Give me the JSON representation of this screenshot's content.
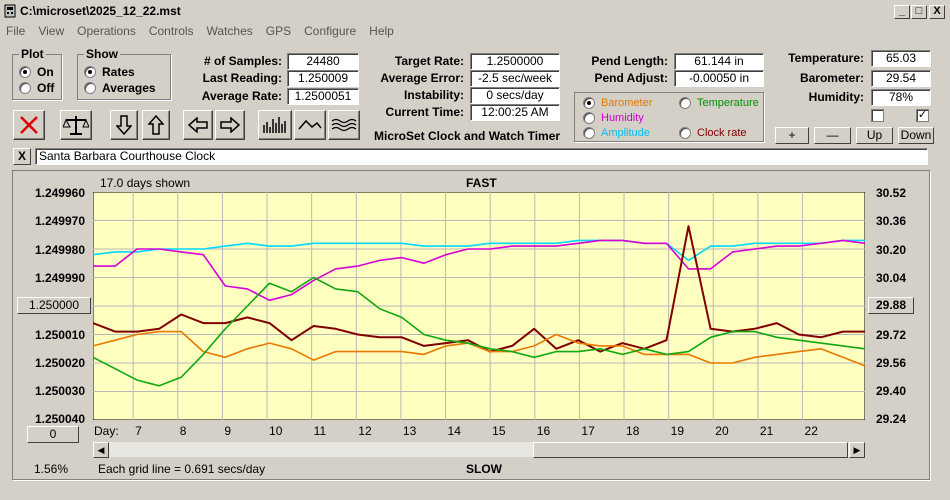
{
  "window": {
    "title": "C:\\microset\\2025_12_22.mst",
    "min": "_",
    "max": "□",
    "close": "X"
  },
  "menu": [
    "File",
    "View",
    "Operations",
    "Controls",
    "Watches",
    "GPS",
    "Configure",
    "Help"
  ],
  "plot": {
    "title": "Plot",
    "on": "On",
    "off": "Off",
    "selected": "On"
  },
  "show": {
    "title": "Show",
    "rates": "Rates",
    "averages": "Averages",
    "selected": "Rates"
  },
  "stats": {
    "samples_label": "# of Samples:",
    "samples": "24480",
    "last_label": "Last Reading:",
    "last": "1.250009",
    "avgrate_label": "Average Rate:",
    "avgrate": "1.2500051",
    "target_label": "Target Rate:",
    "target": "1.2500000",
    "avgerr_label": "Average Error:",
    "avgerr": "-2.5 sec/week",
    "instab_label": "Instability:",
    "instab": "0 secs/day",
    "time_label": "Current Time:",
    "time": "12:00:25 AM",
    "pendlen_label": "Pend Length:",
    "pendlen": "61.144 in",
    "pendadj_label": "Pend Adjust:",
    "pendadj": "-0.00050 in",
    "temp_label": "Temperature:",
    "temp": "65.03",
    "baro_label": "Barometer:",
    "baro": "29.54",
    "hum_label": "Humidity:",
    "hum": "78%"
  },
  "app_caption": "MicroSet Clock and Watch Timer",
  "sensor_select": {
    "barometer": "Barometer",
    "temperature": "Temperature",
    "humidity": "Humidity",
    "amplitude": "Amplitude",
    "clockrate": "Clock rate",
    "selected": "Barometer",
    "colors": {
      "barometer": "#e07800",
      "temperature": "#009000",
      "humidity": "#d000d0",
      "amplitude": "#00d0ff",
      "clockrate": "#800000"
    }
  },
  "adj_buttons": {
    "plus": "+",
    "minus": "—",
    "up": "Up",
    "down": "Down"
  },
  "toolbar_icons": [
    "close-x-icon",
    "balance-scale-icon",
    "arrow-down-icon",
    "arrow-up-icon",
    "arrow-left-icon",
    "arrow-right-icon",
    "histogram-icon",
    "wave-icon",
    "multi-wave-icon"
  ],
  "note_field": "Santa Barbara Courthouse Clock",
  "note_close": "X",
  "chart_header": {
    "days_shown": "17.0 days shown",
    "fast": "FAST",
    "slow": "SLOW",
    "grid_note": "Each grid line = 0.691 secs/day",
    "percent": "1.56%",
    "day_label": "Day:"
  },
  "left_button": "1.250000",
  "right_button": "29.88",
  "bottom_button": "0",
  "chart_data": {
    "type": "line",
    "title": "",
    "x_label": "Day",
    "x_ticks": [
      7,
      8,
      9,
      10,
      11,
      12,
      13,
      14,
      15,
      16,
      17,
      18,
      19,
      20,
      21,
      22
    ],
    "xlim": [
      6.1,
      23.4
    ],
    "y_left_ticks": [
      "1.249960",
      "1.249970",
      "1.249980",
      "1.249990",
      "1.250000",
      "1.250010",
      "1.250020",
      "1.250030",
      "1.250040"
    ],
    "y_left_range": [
      1.24996,
      1.25004
    ],
    "y_left_inverted": true,
    "y_right_ticks": [
      "30.52",
      "30.36",
      "30.20",
      "30.04",
      "29.88",
      "29.72",
      "29.56",
      "29.40",
      "29.24"
    ],
    "y_right_range": [
      29.24,
      30.52
    ],
    "grid": true,
    "background": "#ffffc0",
    "series": [
      {
        "color": "#00d8ff",
        "values": [
          1.249982,
          1.249981,
          1.249981,
          1.24998,
          1.24998,
          1.24998,
          1.249979,
          1.249978,
          1.249979,
          1.249979,
          1.249978,
          1.249978,
          1.249978,
          1.249978,
          1.249978,
          1.249979,
          1.249979,
          1.249979,
          1.249978,
          1.249978,
          1.249978,
          1.249978,
          1.249977,
          1.249977,
          1.249977,
          1.249978,
          1.249978,
          1.249984,
          1.249979,
          1.249979,
          1.249978,
          1.249978,
          1.249978,
          1.249978,
          1.249977,
          1.249977
        ]
      },
      {
        "color": "#d800d8",
        "values": [
          1.249986,
          1.249986,
          1.24998,
          1.24998,
          1.249981,
          1.249982,
          1.249993,
          1.249994,
          1.249998,
          1.249996,
          1.249991,
          1.249987,
          1.249986,
          1.249984,
          1.249983,
          1.249985,
          1.249982,
          1.24998,
          1.24998,
          1.249979,
          1.249979,
          1.249979,
          1.249978,
          1.249977,
          1.249977,
          1.249978,
          1.249978,
          1.249987,
          1.249987,
          1.249981,
          1.24998,
          1.249979,
          1.249979,
          1.249978,
          1.249977,
          1.249978
        ]
      },
      {
        "color": "#800000",
        "values": [
          1.250006,
          1.250009,
          1.250009,
          1.250008,
          1.250003,
          1.250006,
          1.250006,
          1.250004,
          1.250006,
          1.250012,
          1.250007,
          1.250008,
          1.25001,
          1.250011,
          1.250011,
          1.250014,
          1.250013,
          1.250012,
          1.250016,
          1.250014,
          1.250008,
          1.250015,
          1.250012,
          1.250016,
          1.250013,
          1.250015,
          1.250012,
          1.249972,
          1.250008,
          1.250009,
          1.250008,
          1.250006,
          1.25001,
          1.250011,
          1.250009,
          1.250009
        ]
      },
      {
        "color": "#e87800",
        "values": [
          1.250014,
          1.250012,
          1.25001,
          1.250009,
          1.250009,
          1.250016,
          1.250018,
          1.250015,
          1.250013,
          1.250015,
          1.250019,
          1.250016,
          1.250016,
          1.250016,
          1.250016,
          1.250017,
          1.250014,
          1.250013,
          1.250016,
          1.250016,
          1.250014,
          1.25001,
          1.250013,
          1.250014,
          1.250014,
          1.250017,
          1.250017,
          1.250017,
          1.25002,
          1.25002,
          1.250018,
          1.250017,
          1.250016,
          1.250015,
          1.250018,
          1.250021
        ]
      },
      {
        "color": "#10a810",
        "values": [
          1.250018,
          1.250022,
          1.250026,
          1.250028,
          1.250025,
          1.250017,
          1.250008,
          1.25,
          1.249992,
          1.249995,
          1.24999,
          1.249994,
          1.249995,
          1.250001,
          1.250004,
          1.25001,
          1.250012,
          1.250013,
          1.250015,
          1.250016,
          1.250018,
          1.250016,
          1.250016,
          1.250015,
          1.250017,
          1.250015,
          1.250017,
          1.250016,
          1.250011,
          1.250009,
          1.250009,
          1.250011,
          1.250012,
          1.250013,
          1.250014,
          1.250015
        ]
      }
    ]
  }
}
